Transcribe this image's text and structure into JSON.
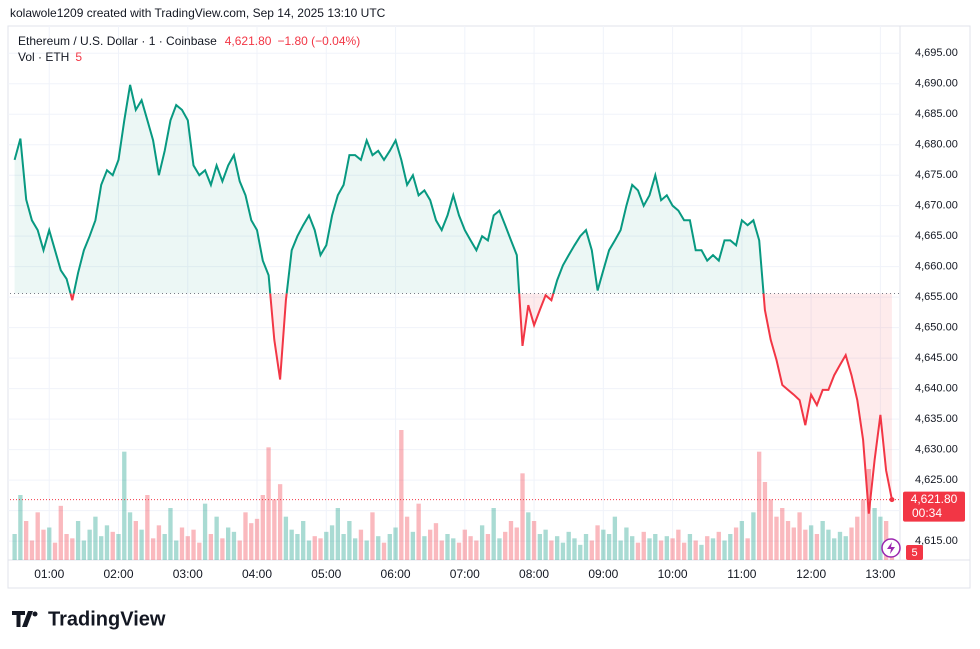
{
  "header": {
    "credit": "kolawole1209 created with TradingView.com, Sep 14, 2025 13:10 UTC",
    "brand": "TradingView"
  },
  "chart_data": {
    "type": "baseline",
    "title": "Ethereum / U.S. Dollar · 1 · Coinbase",
    "last_price_label": "4,621.80",
    "change_label": "−1.80 (−0.04%)",
    "countdown": "00:34",
    "up_color": "#089981",
    "down_color": "#f23645",
    "baseline": 4655.6,
    "grid": true,
    "xlim": [
      "00:26",
      "13:17"
    ],
    "xticks": [
      "01:00",
      "02:00",
      "03:00",
      "04:00",
      "05:00",
      "06:00",
      "07:00",
      "08:00",
      "09:00",
      "10:00",
      "11:00",
      "12:00",
      "13:00"
    ],
    "ylim": [
      4611.9,
      4699.3
    ],
    "yticks": [
      {
        "value": 4615,
        "label": "4,615.00"
      },
      {
        "value": 4620,
        "label": "4,620.00"
      },
      {
        "value": 4625,
        "label": "4,625.00"
      },
      {
        "value": 4630,
        "label": "4,630.00"
      },
      {
        "value": 4635,
        "label": "4,635.00"
      },
      {
        "value": 4640,
        "label": "4,640.00"
      },
      {
        "value": 4645,
        "label": "4,645.00"
      },
      {
        "value": 4650,
        "label": "4,650.00"
      },
      {
        "value": 4655,
        "label": "4,655.00"
      },
      {
        "value": 4660,
        "label": "4,660.00"
      },
      {
        "value": 4665,
        "label": "4,665.00"
      },
      {
        "value": 4670,
        "label": "4,670.00"
      },
      {
        "value": 4675,
        "label": "4,675.00"
      },
      {
        "value": 4680,
        "label": "4,680.00"
      },
      {
        "value": 4685,
        "label": "4,685.00"
      },
      {
        "value": 4690,
        "label": "4,690.00"
      },
      {
        "value": 4695,
        "label": "4,695.00"
      }
    ],
    "x": [
      "00:30",
      "00:35",
      "00:40",
      "00:45",
      "00:50",
      "00:55",
      "01:00",
      "01:05",
      "01:10",
      "01:15",
      "01:20",
      "01:25",
      "01:30",
      "01:35",
      "01:40",
      "01:45",
      "01:50",
      "01:55",
      "02:00",
      "02:05",
      "02:10",
      "02:15",
      "02:20",
      "02:25",
      "02:30",
      "02:35",
      "02:40",
      "02:45",
      "02:50",
      "02:55",
      "03:00",
      "03:05",
      "03:10",
      "03:15",
      "03:20",
      "03:25",
      "03:30",
      "03:35",
      "03:40",
      "03:45",
      "03:50",
      "03:55",
      "04:00",
      "04:05",
      "04:10",
      "04:15",
      "04:20",
      "04:25",
      "04:30",
      "04:35",
      "04:40",
      "04:45",
      "04:50",
      "04:55",
      "05:00",
      "05:05",
      "05:10",
      "05:15",
      "05:20",
      "05:25",
      "05:30",
      "05:35",
      "05:40",
      "05:45",
      "05:50",
      "05:55",
      "06:00",
      "06:05",
      "06:10",
      "06:15",
      "06:20",
      "06:25",
      "06:30",
      "06:35",
      "06:40",
      "06:45",
      "06:50",
      "06:55",
      "07:00",
      "07:05",
      "07:10",
      "07:15",
      "07:20",
      "07:25",
      "07:30",
      "07:35",
      "07:40",
      "07:45",
      "07:50",
      "07:55",
      "08:00",
      "08:05",
      "08:10",
      "08:15",
      "08:20",
      "08:25",
      "08:30",
      "08:35",
      "08:40",
      "08:45",
      "08:50",
      "08:55",
      "09:00",
      "09:05",
      "09:10",
      "09:15",
      "09:20",
      "09:25",
      "09:30",
      "09:35",
      "09:40",
      "09:45",
      "09:50",
      "09:55",
      "10:00",
      "10:05",
      "10:10",
      "10:15",
      "10:20",
      "10:25",
      "10:30",
      "10:35",
      "10:40",
      "10:45",
      "10:50",
      "10:55",
      "11:00",
      "11:05",
      "11:10",
      "11:15",
      "11:20",
      "11:25",
      "11:30",
      "11:35",
      "11:40",
      "11:45",
      "11:50",
      "11:55",
      "12:00",
      "12:05",
      "12:10",
      "12:15",
      "12:20",
      "12:25",
      "12:30",
      "12:35",
      "12:40",
      "12:45",
      "12:50",
      "12:55",
      "13:00",
      "13:05",
      "13:10"
    ],
    "values": [
      4677.5,
      4681,
      4671,
      4667.6,
      4666,
      4662.7,
      4666,
      4662.7,
      4659.4,
      4658,
      4654.5,
      4659,
      4662.7,
      4665,
      4667.6,
      4673.4,
      4675.8,
      4675,
      4677.5,
      4684,
      4689.8,
      4685.7,
      4687.3,
      4684,
      4680.7,
      4675,
      4679,
      4684,
      4686.5,
      4685.7,
      4684,
      4676.6,
      4675,
      4675.8,
      4673.4,
      4676.6,
      4674,
      4676.6,
      4678.3,
      4674,
      4671.7,
      4667.6,
      4666,
      4661,
      4658.6,
      4648,
      4641.5,
      4654.5,
      4662.7,
      4665,
      4666.8,
      4668.4,
      4666,
      4661.9,
      4663.5,
      4668.4,
      4671.7,
      4673.4,
      4678.3,
      4678.3,
      4677.5,
      4680.7,
      4678.3,
      4679,
      4677.5,
      4679,
      4680.7,
      4677.5,
      4673.4,
      4675,
      4671.7,
      4672.5,
      4670.9,
      4667.6,
      4666,
      4668.4,
      4671.7,
      4668.4,
      4666,
      4664.3,
      4662.7,
      4665,
      4664.3,
      4668.4,
      4669.2,
      4666.8,
      4664.3,
      4661.9,
      4647,
      4653.7,
      4650.4,
      4652.9,
      4655.3,
      4654.5,
      4657.8,
      4660.2,
      4661.9,
      4663.5,
      4665,
      4666,
      4662.7,
      4656.1,
      4659.4,
      4662.7,
      4664.3,
      4666,
      4670,
      4673.4,
      4672.5,
      4670,
      4671.7,
      4675,
      4670.9,
      4671.7,
      4670,
      4669.2,
      4667.6,
      4667.6,
      4662.7,
      4662.7,
      4661,
      4661.9,
      4661,
      4664.3,
      4664.3,
      4663.5,
      4667.6,
      4666.8,
      4667.6,
      4664.3,
      4652.9,
      4648,
      4644.7,
      4640.6,
      4639.8,
      4639,
      4638.1,
      4634,
      4639,
      4637.3,
      4639.8,
      4639.8,
      4642.2,
      4643.9,
      4645.5,
      4642.2,
      4638.1,
      4631.6,
      4619.5,
      4628.3,
      4635.7,
      4626.6,
      4621.8
    ],
    "volume": {
      "name": "Vol · ETH",
      "values": [
        12,
        30,
        18,
        9,
        22,
        14,
        15,
        8,
        25,
        12,
        10,
        18,
        9,
        14,
        20,
        11,
        16,
        13,
        12,
        50,
        22,
        18,
        14,
        30,
        10,
        16,
        12,
        24,
        9,
        15,
        11,
        14,
        8,
        26,
        12,
        20,
        10,
        15,
        13,
        9,
        22,
        17,
        19,
        30,
        52,
        28,
        35,
        20,
        14,
        12,
        18,
        9,
        11,
        10,
        13,
        16,
        24,
        12,
        18,
        10,
        14,
        9,
        22,
        11,
        8,
        12,
        15,
        60,
        20,
        13,
        26,
        11,
        14,
        17,
        9,
        12,
        10,
        8,
        14,
        11,
        9,
        16,
        12,
        24,
        10,
        13,
        18,
        15,
        40,
        22,
        18,
        12,
        14,
        9,
        11,
        8,
        13,
        10,
        7,
        12,
        9,
        16,
        14,
        12,
        20,
        9,
        15,
        11,
        8,
        13,
        10,
        12,
        9,
        11,
        10,
        14,
        8,
        12,
        9,
        7,
        11,
        10,
        13,
        9,
        12,
        15,
        18,
        10,
        22,
        50,
        36,
        28,
        20,
        24,
        18,
        15,
        22,
        14,
        16,
        12,
        18,
        14,
        10,
        13,
        11,
        15,
        20,
        28,
        42,
        24,
        20,
        18,
        5
      ]
    }
  }
}
